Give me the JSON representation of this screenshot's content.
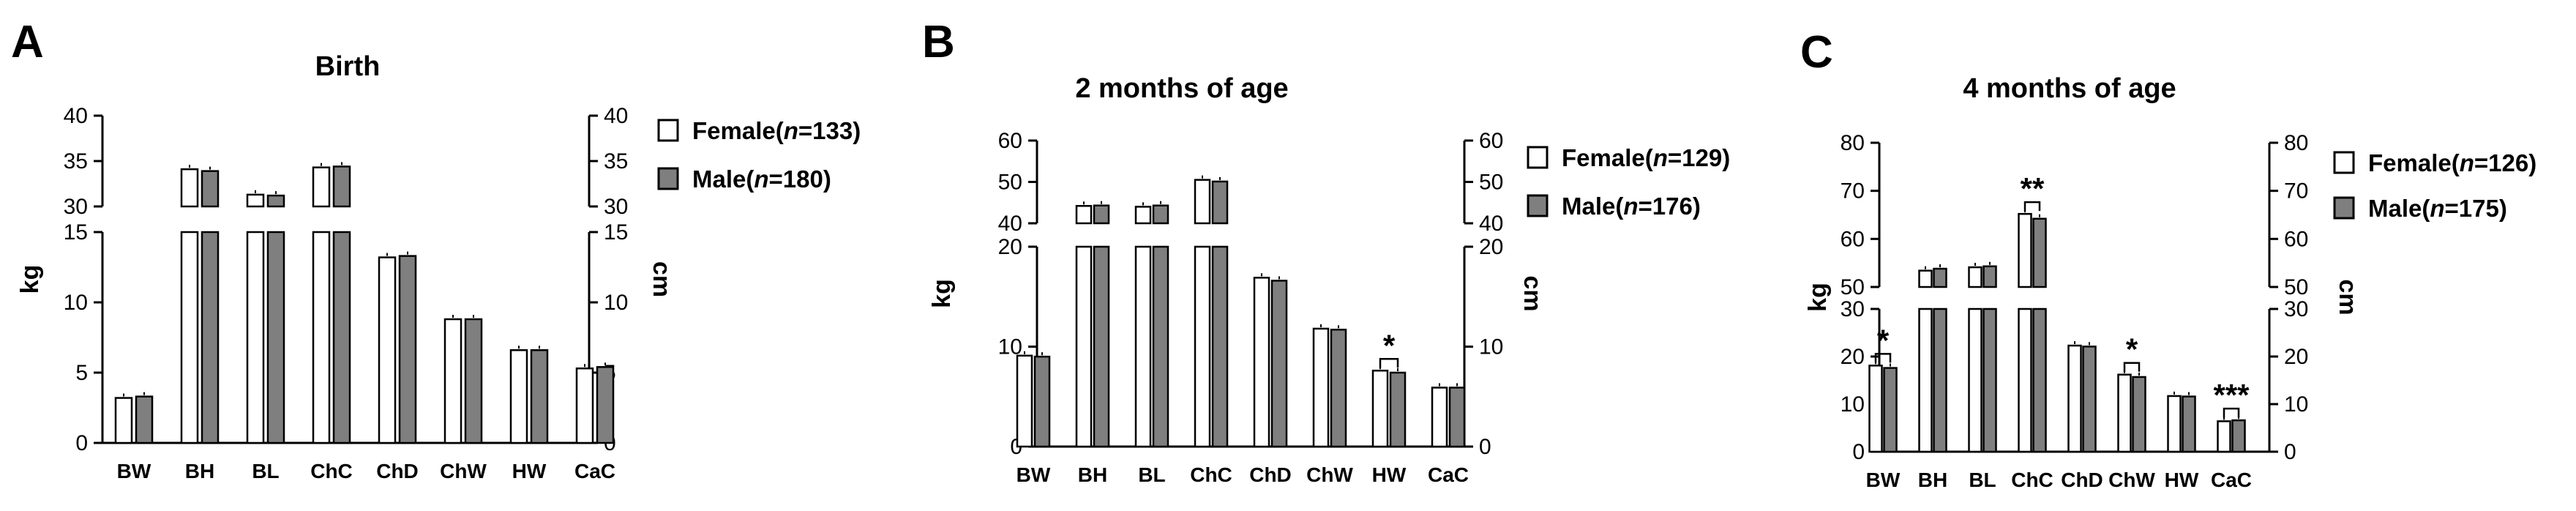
{
  "chart_data": [
    {
      "type": "bar",
      "panel_label": "A",
      "title": "Birth",
      "ylabel_left": "kg",
      "ylabel_right": "cm",
      "categories": [
        "BW",
        "BH",
        "BL",
        "ChC",
        "ChD",
        "ChW",
        "HW",
        "CaC"
      ],
      "series": [
        {
          "name": "Female(n=133)",
          "name_prefix": "Female(",
          "name_italic": "n",
          "name_suffix": "=133)",
          "color": "#ffffff",
          "values": [
            3.2,
            34.1,
            31.3,
            34.3,
            13.2,
            8.8,
            6.6,
            5.3
          ]
        },
        {
          "name": "Male(n=180)",
          "name_prefix": "Male(",
          "name_italic": "n",
          "name_suffix": "=180)",
          "color": "#7f7f7f",
          "values": [
            3.3,
            33.9,
            31.2,
            34.4,
            13.3,
            8.8,
            6.6,
            5.4
          ]
        }
      ],
      "significance": [],
      "lower_ylim": [
        0,
        15
      ],
      "lower_ticks": [
        0,
        5,
        10,
        15
      ],
      "upper_ylim": [
        30,
        40
      ],
      "upper_ticks": [
        30,
        35,
        40
      ],
      "legend": "right"
    },
    {
      "type": "bar",
      "panel_label": "B",
      "title": "2 months of age",
      "ylabel_left": "kg",
      "ylabel_right": "cm",
      "categories": [
        "BW",
        "BH",
        "BL",
        "ChC",
        "ChD",
        "ChW",
        "HW",
        "CaC"
      ],
      "series": [
        {
          "name": "Female(n=129)",
          "name_prefix": "Female(",
          "name_italic": "n",
          "name_suffix": "=129)",
          "color": "#ffffff",
          "values": [
            9.1,
            44.2,
            44.0,
            50.5,
            16.9,
            11.8,
            7.6,
            5.9
          ]
        },
        {
          "name": "Male(n=176)",
          "name_prefix": "Male(",
          "name_italic": "n",
          "name_suffix": "=176)",
          "color": "#7f7f7f",
          "values": [
            9.0,
            44.3,
            44.3,
            50.1,
            16.6,
            11.7,
            7.4,
            5.9
          ]
        }
      ],
      "significance": [
        {
          "category": "HW",
          "label": "*"
        }
      ],
      "lower_ylim": [
        0,
        20
      ],
      "lower_ticks": [
        0,
        10,
        20
      ],
      "upper_ylim": [
        40,
        60
      ],
      "upper_ticks": [
        40,
        50,
        60
      ],
      "legend": "right"
    },
    {
      "type": "bar",
      "panel_label": "C",
      "title": "4 months of age",
      "ylabel_left": "kg",
      "ylabel_right": "cm",
      "categories": [
        "BW",
        "BH",
        "BL",
        "ChC",
        "ChD",
        "ChW",
        "HW",
        "CaC"
      ],
      "series": [
        {
          "name": "Female(n=126)",
          "name_prefix": "Female(",
          "name_italic": "n",
          "name_suffix": "=126)",
          "color": "#ffffff",
          "values": [
            18.1,
            53.4,
            54.1,
            65.2,
            22.3,
            16.2,
            11.7,
            6.4
          ]
        },
        {
          "name": "Male(n=175)",
          "name_prefix": "Male(",
          "name_italic": "n",
          "name_suffix": "=175)",
          "color": "#7f7f7f",
          "values": [
            17.6,
            53.8,
            54.3,
            64.2,
            22.1,
            15.7,
            11.6,
            6.6
          ]
        }
      ],
      "significance": [
        {
          "category": "BW",
          "label": "*"
        },
        {
          "category": "ChC",
          "label": "**"
        },
        {
          "category": "ChW",
          "label": "*"
        },
        {
          "category": "CaC",
          "label": "***"
        }
      ],
      "lower_ylim": [
        0,
        30
      ],
      "lower_ticks": [
        0,
        10,
        20,
        30
      ],
      "upper_ylim": [
        50,
        80
      ],
      "upper_ticks": [
        50,
        60,
        70,
        80
      ],
      "legend": "right"
    }
  ]
}
